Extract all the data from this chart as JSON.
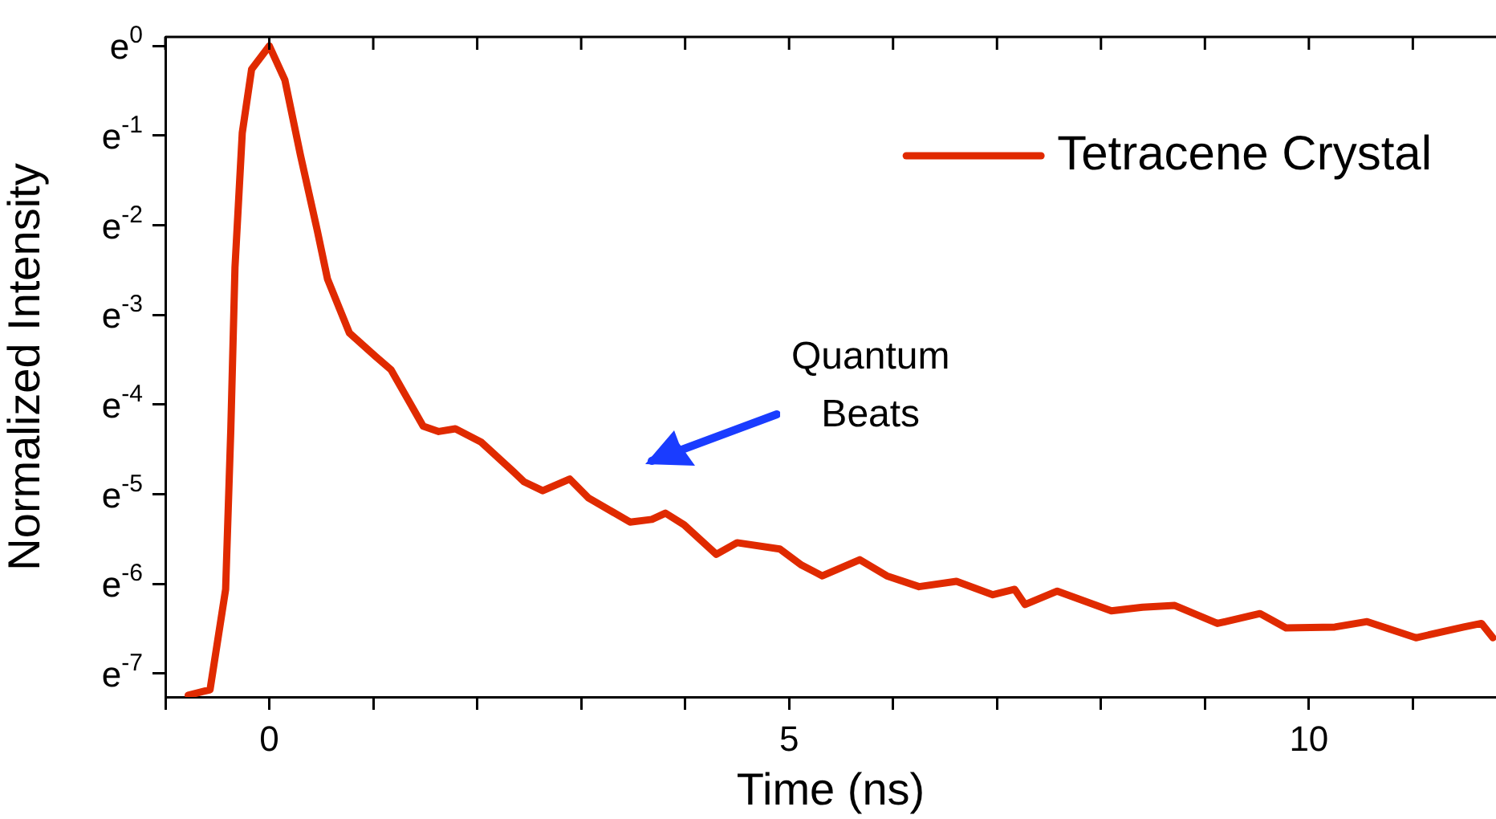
{
  "chart_data": {
    "type": "line",
    "xlabel": "Time (ns)",
    "ylabel": "Normalized Intensity",
    "legend": "top right",
    "marker": "none",
    "line_style": "solid",
    "annotations": [
      "Quantum Beats"
    ],
    "xlim": [
      -1,
      11.8
    ],
    "xticks": [
      0,
      5,
      10,
      {
        "value": -1,
        "label": null
      },
      {
        "value": 1,
        "label": null
      },
      {
        "value": 2,
        "label": null
      },
      {
        "value": 3,
        "label": null
      },
      {
        "value": 4,
        "label": null
      },
      {
        "value": 6,
        "label": null
      },
      {
        "value": 7,
        "label": null
      },
      {
        "value": 8,
        "label": null
      },
      {
        "value": 9,
        "label": null
      },
      {
        "value": 11,
        "label": null
      }
    ],
    "ylim": [
      -7.26,
      0.1
    ],
    "yticks": [
      {
        "value": 0,
        "label": "e$^{0}$"
      },
      {
        "value": -1,
        "label": "e$^{-1}$"
      },
      {
        "value": -2,
        "label": "e$^{-2}$"
      },
      {
        "value": -3,
        "label": "e$^{-3}$"
      },
      {
        "value": -4,
        "label": "e$^{-4}$"
      },
      {
        "value": -5,
        "label": "e$^{-5}$"
      },
      {
        "value": -6,
        "label": "e$^{-6}$"
      },
      {
        "value": -7,
        "label": "e$^{-7}$"
      }
    ],
    "series": [
      {
        "name": "Tetracene Crystal",
        "color": "#e02a00",
        "x": [
          -0.78,
          -0.57,
          -0.42,
          -0.37,
          -0.33,
          -0.26,
          -0.17,
          0,
          0.15,
          0.3,
          0.46,
          0.56,
          0.77,
          1.02,
          1.17,
          1.48,
          1.63,
          1.79,
          2.04,
          2.35,
          2.45,
          2.63,
          2.89,
          3.07,
          3.47,
          3.68,
          3.81,
          3.99,
          4.3,
          4.5,
          4.91,
          5.12,
          5.32,
          5.68,
          5.94,
          6.25,
          6.61,
          6.96,
          7.17,
          7.27,
          7.58,
          8.1,
          8.4,
          8.71,
          9.12,
          9.53,
          9.78,
          10.25,
          10.56,
          11.03,
          11.49,
          11.66,
          11.77
        ],
        "values": [
          -7.24,
          -7.18,
          -6.06,
          -4.27,
          -2.47,
          -0.97,
          -0.26,
          0,
          -0.38,
          -1.22,
          -2.05,
          -2.6,
          -3.2,
          -3.46,
          -3.61,
          -4.24,
          -4.3,
          -4.27,
          -4.42,
          -4.75,
          -4.86,
          -4.96,
          -4.83,
          -5.04,
          -5.31,
          -5.28,
          -5.21,
          -5.34,
          -5.67,
          -5.54,
          -5.61,
          -5.79,
          -5.91,
          -5.73,
          -5.91,
          -6.03,
          -5.97,
          -6.12,
          -6.06,
          -6.23,
          -6.08,
          -6.3,
          -6.26,
          -6.24,
          -6.44,
          -6.33,
          -6.49,
          -6.48,
          -6.42,
          -6.6,
          -6.48,
          -6.44,
          -6.6
        ]
      }
    ]
  }
}
